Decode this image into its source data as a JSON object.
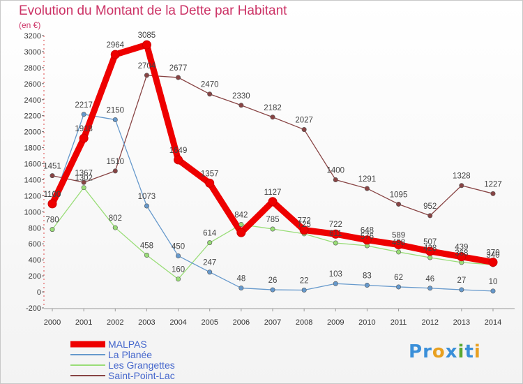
{
  "header": {
    "title": "Evolution du Montant de la Dette par Habitant",
    "subtitle": "(en €)"
  },
  "brand": {
    "text": "Proxiti",
    "colors": [
      "#3a8fd9",
      "#3a8fd9",
      "#e8a020",
      "#3a8fd9",
      "#5aa832",
      "#3a8fd9",
      "#e8a020"
    ]
  },
  "chart_data": {
    "type": "line",
    "x": [
      "2000",
      "2001",
      "2002",
      "2003",
      "2004",
      "2005",
      "2006",
      "2007",
      "2008",
      "2009",
      "2010",
      "2011",
      "2012",
      "2013",
      "2014"
    ],
    "ylim": [
      -200,
      3200
    ],
    "yticks": [
      -200,
      0,
      200,
      400,
      600,
      800,
      1000,
      1200,
      1400,
      1600,
      1800,
      2000,
      2200,
      2400,
      2600,
      2800,
      3000,
      3200
    ],
    "grid": false,
    "legend_position": "bottom-left",
    "series": [
      {
        "name": "MALPAS",
        "color": "#ee0000",
        "values": [
          1100,
          1918,
          2964,
          3085,
          1649,
          1357,
          740,
          1127,
          772,
          722,
          648,
          589,
          507,
          439,
          370
        ],
        "labels": [
          "1100",
          "1918",
          "2964",
          "3085",
          "1649",
          "1357",
          "",
          "1127",
          "772",
          "722",
          "648",
          "589",
          "507",
          "439",
          "370"
        ]
      },
      {
        "name": "La Planée",
        "color": "#6699cc",
        "values": [
          1100,
          2217,
          2150,
          1073,
          450,
          247,
          48,
          26,
          22,
          103,
          83,
          62,
          46,
          27,
          10
        ],
        "labels": [
          "1100",
          "2217",
          "2150",
          "1073",
          "450",
          "247",
          "48",
          "26",
          "22",
          "103",
          "83",
          "62",
          "46",
          "27",
          "10"
        ]
      },
      {
        "name": "Les Grangettes",
        "color": "#99dd77",
        "values": [
          780,
          1302,
          802,
          458,
          160,
          614,
          842,
          785,
          725,
          611,
          576,
          498,
          428,
          368,
          340
        ],
        "labels": [
          "780",
          "1302",
          "802",
          "458",
          "160",
          "614",
          "842",
          "785",
          "725",
          "611",
          "576",
          "498",
          "428",
          "368",
          "340"
        ]
      },
      {
        "name": "Saint-Point-Lac",
        "color": "#884444",
        "values": [
          1451,
          1367,
          1510,
          2704,
          2677,
          2470,
          2330,
          2182,
          2027,
          1400,
          1291,
          1095,
          952,
          1328,
          1227
        ],
        "labels": [
          "1451",
          "1367",
          "1510",
          "2704",
          "2677",
          "2470",
          "2330",
          "2182",
          "2027",
          "1400",
          "1291",
          "1095",
          "952",
          "1328",
          "1227"
        ]
      }
    ]
  }
}
